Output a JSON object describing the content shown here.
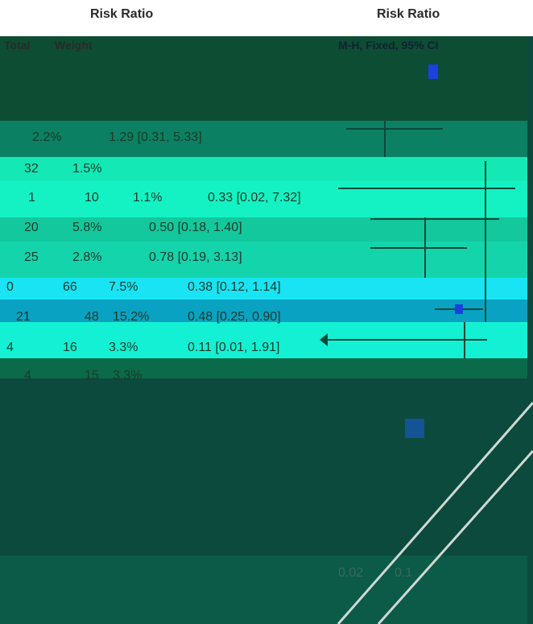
{
  "header": {
    "left_title": "Risk Ratio",
    "right_title": "Risk Ratio"
  },
  "columns": [
    "Total",
    "Weight",
    "M-H, Fixed, 95% CI"
  ],
  "rows": [
    [
      "2.2%",
      "1.29 [0.31, 5.33]"
    ],
    [
      "32",
      "1.5%"
    ],
    [
      "1",
      "10",
      "1.1%",
      "0.33 [0.02, 7.32]"
    ],
    [
      "20",
      "5.8%",
      "0.50 [0.18, 1.40]"
    ],
    [
      "25",
      "2.8%",
      "0.78 [0.19, 3.13]"
    ],
    [
      "0",
      "66",
      "7.5%",
      "0.38 [0.12, 1.14]"
    ],
    [
      "21",
      "48",
      "15.2%",
      "0.48 [0.25, 0.90]"
    ],
    [
      "4",
      "16",
      "3.3%",
      "0.11 [0.01, 1.91]"
    ],
    [
      "4",
      "15",
      "3.3%"
    ]
  ],
  "axis_labels": [
    "0.02",
    "0.1"
  ]
}
